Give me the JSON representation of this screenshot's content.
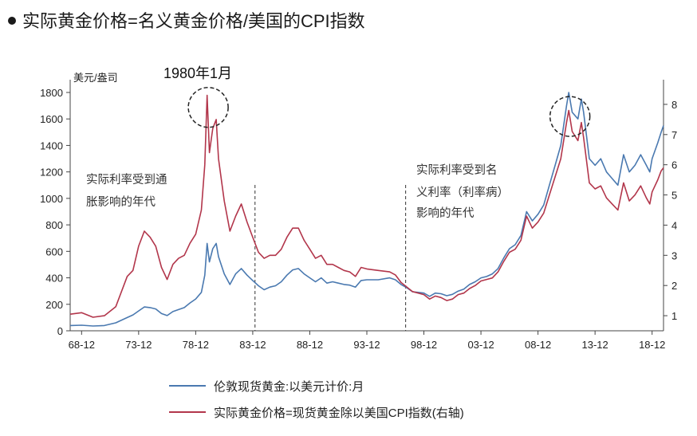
{
  "title": "实际黄金价格=名义黄金价格/美国的CPI指数",
  "colors": {
    "nominal": "#4a79b0",
    "real": "#b2364b",
    "axis": "#444444",
    "text": "#222222"
  },
  "chart_data": {
    "type": "line",
    "y_left_label": "美元/盎司",
    "y_left_range": [
      0,
      1800
    ],
    "y_left_ticks": [
      "0",
      "200",
      "400",
      "600",
      "800",
      "1000",
      "1200",
      "1400",
      "1600",
      "1800"
    ],
    "y_right_range": [
      0.5,
      8.5
    ],
    "y_right_ticks": [
      "1",
      "2",
      "3",
      "4",
      "5",
      "6",
      "7",
      "8"
    ],
    "x_range": [
      1968.0,
      2020.0
    ],
    "x_tick_labels": [
      "68-12",
      "73-12",
      "78-12",
      "83-12",
      "88-12",
      "93-12",
      "98-12",
      "03-12",
      "08-12",
      "13-12",
      "18-12"
    ],
    "annotations": {
      "peak_label": "1980年1月",
      "era1_line1": "实际利率受到通",
      "era1_line2": "胀影响的年代",
      "era2_line1": "实际利率受到名",
      "era2_line2": "义利率（利率病）",
      "era2_line3": "影响的年代"
    },
    "series": [
      {
        "name": "伦敦现货黄金:以美元计价:月",
        "axis": "left",
        "points": [
          [
            1968.0,
            40
          ],
          [
            1969.0,
            42
          ],
          [
            1970.0,
            36
          ],
          [
            1971.0,
            40
          ],
          [
            1972.0,
            60
          ],
          [
            1973.0,
            100
          ],
          [
            1973.5,
            120
          ],
          [
            1974.0,
            150
          ],
          [
            1974.5,
            180
          ],
          [
            1975.0,
            175
          ],
          [
            1975.5,
            165
          ],
          [
            1976.0,
            130
          ],
          [
            1976.5,
            115
          ],
          [
            1977.0,
            145
          ],
          [
            1977.5,
            160
          ],
          [
            1978.0,
            175
          ],
          [
            1978.5,
            210
          ],
          [
            1979.0,
            240
          ],
          [
            1979.5,
            290
          ],
          [
            1979.8,
            420
          ],
          [
            1980.0,
            660
          ],
          [
            1980.2,
            520
          ],
          [
            1980.5,
            620
          ],
          [
            1980.8,
            660
          ],
          [
            1981.0,
            560
          ],
          [
            1981.5,
            430
          ],
          [
            1982.0,
            350
          ],
          [
            1982.5,
            430
          ],
          [
            1983.0,
            470
          ],
          [
            1983.5,
            420
          ],
          [
            1984.0,
            380
          ],
          [
            1984.5,
            340
          ],
          [
            1985.0,
            310
          ],
          [
            1985.5,
            330
          ],
          [
            1986.0,
            340
          ],
          [
            1986.5,
            370
          ],
          [
            1987.0,
            420
          ],
          [
            1987.5,
            460
          ],
          [
            1988.0,
            470
          ],
          [
            1988.5,
            430
          ],
          [
            1989.0,
            400
          ],
          [
            1989.5,
            370
          ],
          [
            1990.0,
            400
          ],
          [
            1990.5,
            360
          ],
          [
            1991.0,
            370
          ],
          [
            1991.5,
            360
          ],
          [
            1992.0,
            350
          ],
          [
            1992.5,
            345
          ],
          [
            1993.0,
            330
          ],
          [
            1993.5,
            380
          ],
          [
            1994.0,
            385
          ],
          [
            1995.0,
            385
          ],
          [
            1996.0,
            400
          ],
          [
            1996.5,
            385
          ],
          [
            1997.0,
            350
          ],
          [
            1997.5,
            325
          ],
          [
            1998.0,
            295
          ],
          [
            1998.5,
            290
          ],
          [
            1999.0,
            285
          ],
          [
            1999.5,
            260
          ],
          [
            2000.0,
            285
          ],
          [
            2000.5,
            280
          ],
          [
            2001.0,
            265
          ],
          [
            2001.5,
            275
          ],
          [
            2002.0,
            300
          ],
          [
            2002.5,
            315
          ],
          [
            2003.0,
            350
          ],
          [
            2003.5,
            370
          ],
          [
            2004.0,
            400
          ],
          [
            2004.5,
            410
          ],
          [
            2005.0,
            430
          ],
          [
            2005.5,
            470
          ],
          [
            2006.0,
            550
          ],
          [
            2006.5,
            620
          ],
          [
            2007.0,
            650
          ],
          [
            2007.5,
            720
          ],
          [
            2008.0,
            900
          ],
          [
            2008.5,
            830
          ],
          [
            2009.0,
            880
          ],
          [
            2009.5,
            950
          ],
          [
            2010.0,
            1100
          ],
          [
            2010.5,
            1250
          ],
          [
            2011.0,
            1400
          ],
          [
            2011.5,
            1700
          ],
          [
            2011.7,
            1800
          ],
          [
            2012.0,
            1650
          ],
          [
            2012.5,
            1600
          ],
          [
            2012.8,
            1750
          ],
          [
            2013.0,
            1650
          ],
          [
            2013.5,
            1300
          ],
          [
            2014.0,
            1250
          ],
          [
            2014.5,
            1300
          ],
          [
            2015.0,
            1200
          ],
          [
            2015.5,
            1150
          ],
          [
            2016.0,
            1100
          ],
          [
            2016.5,
            1330
          ],
          [
            2017.0,
            1200
          ],
          [
            2017.5,
            1250
          ],
          [
            2018.0,
            1330
          ],
          [
            2018.5,
            1250
          ],
          [
            2018.8,
            1200
          ],
          [
            2019.0,
            1300
          ],
          [
            2019.5,
            1420
          ],
          [
            2019.8,
            1500
          ],
          [
            2020.0,
            1550
          ]
        ]
      },
      {
        "name": "实际黄金价格=现货黄金除以美国CPI指数(右轴)",
        "axis": "right",
        "points": [
          [
            1968.0,
            1.05
          ],
          [
            1969.0,
            1.1
          ],
          [
            1970.0,
            0.95
          ],
          [
            1971.0,
            1.0
          ],
          [
            1972.0,
            1.3
          ],
          [
            1973.0,
            2.3
          ],
          [
            1973.5,
            2.5
          ],
          [
            1974.0,
            3.3
          ],
          [
            1974.5,
            3.8
          ],
          [
            1975.0,
            3.6
          ],
          [
            1975.5,
            3.3
          ],
          [
            1976.0,
            2.6
          ],
          [
            1976.5,
            2.2
          ],
          [
            1977.0,
            2.7
          ],
          [
            1977.5,
            2.9
          ],
          [
            1978.0,
            3.0
          ],
          [
            1978.5,
            3.4
          ],
          [
            1979.0,
            3.7
          ],
          [
            1979.5,
            4.5
          ],
          [
            1979.8,
            6.0
          ],
          [
            1980.0,
            8.3
          ],
          [
            1980.2,
            6.4
          ],
          [
            1980.5,
            7.2
          ],
          [
            1980.8,
            7.5
          ],
          [
            1981.0,
            6.2
          ],
          [
            1981.5,
            4.8
          ],
          [
            1982.0,
            3.8
          ],
          [
            1982.5,
            4.3
          ],
          [
            1983.0,
            4.7
          ],
          [
            1983.5,
            4.1
          ],
          [
            1984.0,
            3.6
          ],
          [
            1984.5,
            3.1
          ],
          [
            1985.0,
            2.9
          ],
          [
            1985.5,
            3.0
          ],
          [
            1986.0,
            3.0
          ],
          [
            1986.5,
            3.2
          ],
          [
            1987.0,
            3.6
          ],
          [
            1987.5,
            3.9
          ],
          [
            1988.0,
            3.9
          ],
          [
            1988.5,
            3.5
          ],
          [
            1989.0,
            3.2
          ],
          [
            1989.5,
            2.9
          ],
          [
            1990.0,
            3.0
          ],
          [
            1990.5,
            2.7
          ],
          [
            1991.0,
            2.7
          ],
          [
            1991.5,
            2.6
          ],
          [
            1992.0,
            2.5
          ],
          [
            1992.5,
            2.45
          ],
          [
            1993.0,
            2.3
          ],
          [
            1993.5,
            2.6
          ],
          [
            1994.0,
            2.55
          ],
          [
            1995.0,
            2.5
          ],
          [
            1996.0,
            2.45
          ],
          [
            1996.5,
            2.35
          ],
          [
            1997.0,
            2.1
          ],
          [
            1997.5,
            1.95
          ],
          [
            1998.0,
            1.8
          ],
          [
            1998.5,
            1.75
          ],
          [
            1999.0,
            1.7
          ],
          [
            1999.5,
            1.55
          ],
          [
            2000.0,
            1.65
          ],
          [
            2000.5,
            1.6
          ],
          [
            2001.0,
            1.5
          ],
          [
            2001.5,
            1.55
          ],
          [
            2002.0,
            1.7
          ],
          [
            2002.5,
            1.75
          ],
          [
            2003.0,
            1.9
          ],
          [
            2003.5,
            2.0
          ],
          [
            2004.0,
            2.15
          ],
          [
            2004.5,
            2.2
          ],
          [
            2005.0,
            2.25
          ],
          [
            2005.5,
            2.45
          ],
          [
            2006.0,
            2.8
          ],
          [
            2006.5,
            3.1
          ],
          [
            2007.0,
            3.2
          ],
          [
            2007.5,
            3.5
          ],
          [
            2008.0,
            4.3
          ],
          [
            2008.5,
            3.9
          ],
          [
            2009.0,
            4.1
          ],
          [
            2009.5,
            4.4
          ],
          [
            2010.0,
            5.0
          ],
          [
            2010.5,
            5.6
          ],
          [
            2011.0,
            6.2
          ],
          [
            2011.5,
            7.4
          ],
          [
            2011.7,
            7.8
          ],
          [
            2012.0,
            7.1
          ],
          [
            2012.5,
            6.8
          ],
          [
            2012.8,
            7.4
          ],
          [
            2013.0,
            6.9
          ],
          [
            2013.5,
            5.4
          ],
          [
            2014.0,
            5.2
          ],
          [
            2014.5,
            5.3
          ],
          [
            2015.0,
            4.9
          ],
          [
            2015.5,
            4.7
          ],
          [
            2016.0,
            4.5
          ],
          [
            2016.5,
            5.4
          ],
          [
            2017.0,
            4.8
          ],
          [
            2017.5,
            5.0
          ],
          [
            2018.0,
            5.3
          ],
          [
            2018.5,
            4.9
          ],
          [
            2018.8,
            4.7
          ],
          [
            2019.0,
            5.1
          ],
          [
            2019.5,
            5.5
          ],
          [
            2019.8,
            5.8
          ],
          [
            2020.0,
            5.9
          ]
        ]
      }
    ]
  }
}
